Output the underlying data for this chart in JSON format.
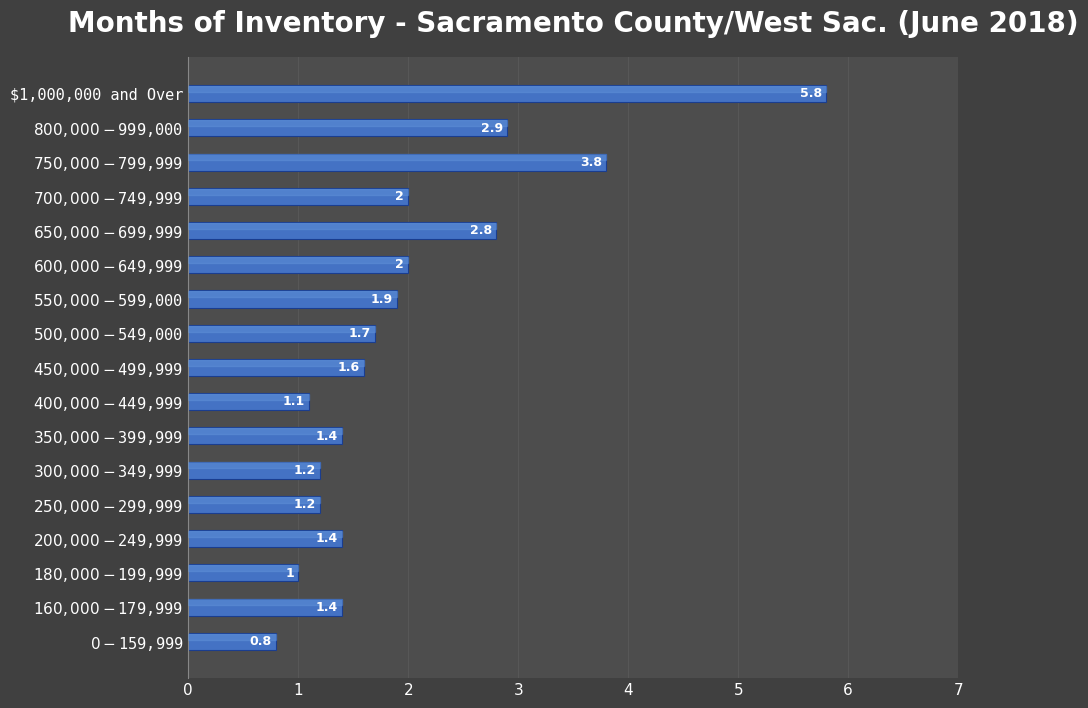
{
  "title": "Months of Inventory - Sacramento County/West Sac. (June 2018)",
  "categories": [
    "$1,000,000 and Over",
    "$800,000 - $999,000",
    "$750,000 - $799,999",
    "$700,000 - $749,999",
    "$650,000 - $699,999",
    "$600,000 - $649,999",
    "$550,000 - $599,000",
    "$500,000 - $549,000",
    "$450,000 - $499,999",
    "$400,000 - $449,999",
    "$350,000 - $399,999",
    "$300,000 - $349,999",
    "$250,000 - $299,999",
    "$200,000 - $249,999",
    "$180,000 - $199,999",
    "$160,000 - $179,999",
    "$0 - $159,999"
  ],
  "values": [
    5.8,
    2.9,
    3.8,
    2.0,
    2.8,
    2.0,
    1.9,
    1.7,
    1.6,
    1.1,
    1.4,
    1.2,
    1.2,
    1.4,
    1.0,
    1.4,
    0.8
  ],
  "bar_color": "#4472C4",
  "bar_color_top": "#5B8DD9",
  "bar_color_bottom": "#2E5FAA",
  "bar_edge_color": "#1a3d8f",
  "background_color": "#404040",
  "plot_bg_color": "#4d4d4d",
  "text_color": "#ffffff",
  "grid_color": "#5a5a5a",
  "title_fontsize": 20,
  "label_fontsize": 11,
  "tick_fontsize": 11,
  "value_fontsize": 9,
  "xlim": [
    0,
    7
  ],
  "xticks": [
    0,
    1,
    2,
    3,
    4,
    5,
    6,
    7
  ]
}
